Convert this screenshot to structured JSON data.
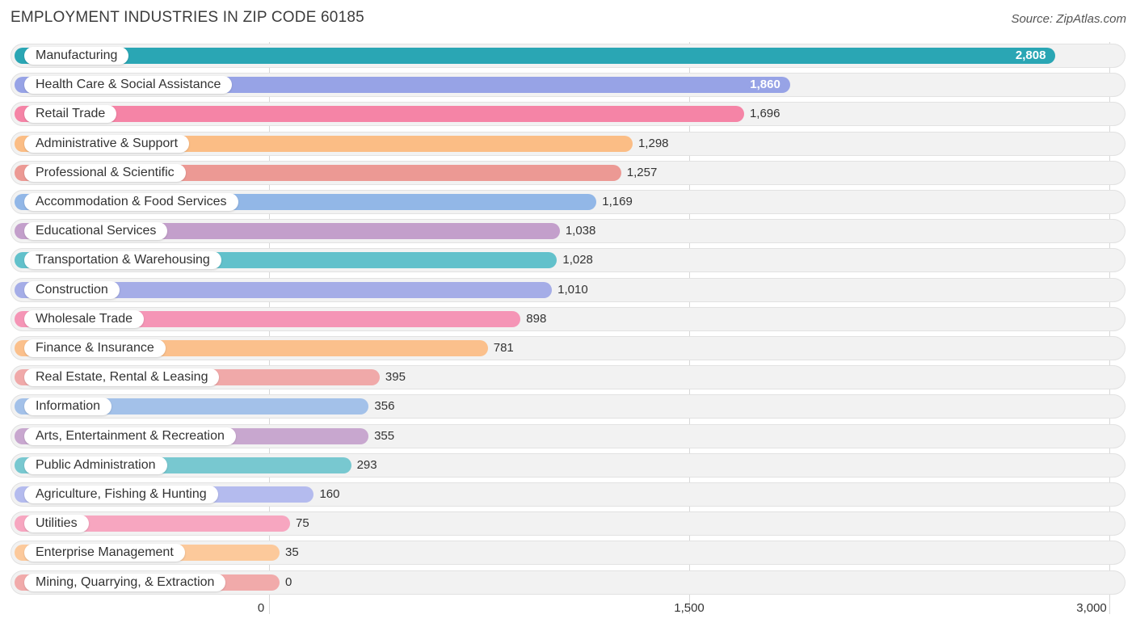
{
  "chart_data": {
    "type": "bar",
    "orientation": "horizontal",
    "title": "EMPLOYMENT INDUSTRIES IN ZIP CODE 60185",
    "source": "Source: ZipAtlas.com",
    "xlim": [
      0,
      3000
    ],
    "ticks": [
      {
        "value": 0,
        "label": "0"
      },
      {
        "value": 1500,
        "label": "1,500"
      },
      {
        "value": 3000,
        "label": "3,000"
      }
    ],
    "bars": [
      {
        "category": "Manufacturing",
        "value": 2808,
        "label": "2,808",
        "color": "#2aa6b4"
      },
      {
        "category": "Health Care & Social Assistance",
        "value": 1860,
        "label": "1,860",
        "color": "#97a3e6"
      },
      {
        "category": "Retail Trade",
        "value": 1696,
        "label": "1,696",
        "color": "#f584a6"
      },
      {
        "category": "Administrative & Support",
        "value": 1298,
        "label": "1,298",
        "color": "#fbbd85"
      },
      {
        "category": "Professional & Scientific",
        "value": 1257,
        "label": "1,257",
        "color": "#ec9994"
      },
      {
        "category": "Accommodation & Food Services",
        "value": 1169,
        "label": "1,169",
        "color": "#92b7e7"
      },
      {
        "category": "Educational Services",
        "value": 1038,
        "label": "1,038",
        "color": "#c39fcb"
      },
      {
        "category": "Transportation & Warehousing",
        "value": 1028,
        "label": "1,028",
        "color": "#62c1cb"
      },
      {
        "category": "Construction",
        "value": 1010,
        "label": "1,010",
        "color": "#a5ade7"
      },
      {
        "category": "Wholesale Trade",
        "value": 898,
        "label": "898",
        "color": "#f595b6"
      },
      {
        "category": "Finance & Insurance",
        "value": 781,
        "label": "781",
        "color": "#fbc08c"
      },
      {
        "category": "Real Estate, Rental & Leasing",
        "value": 395,
        "label": "395",
        "color": "#f0a9a9"
      },
      {
        "category": "Information",
        "value": 356,
        "label": "356",
        "color": "#a3c1e9"
      },
      {
        "category": "Arts, Entertainment & Recreation",
        "value": 355,
        "label": "355",
        "color": "#c8a7cf"
      },
      {
        "category": "Public Administration",
        "value": 293,
        "label": "293",
        "color": "#78c8d0"
      },
      {
        "category": "Agriculture, Fishing & Hunting",
        "value": 160,
        "label": "160",
        "color": "#b4bbee"
      },
      {
        "category": "Utilities",
        "value": 75,
        "label": "75",
        "color": "#f7a6c0"
      },
      {
        "category": "Enterprise Management",
        "value": 35,
        "label": "35",
        "color": "#fcc99b"
      },
      {
        "category": "Mining, Quarrying, & Extraction",
        "value": 0,
        "label": "0",
        "color": "#f1aaaa"
      }
    ]
  }
}
